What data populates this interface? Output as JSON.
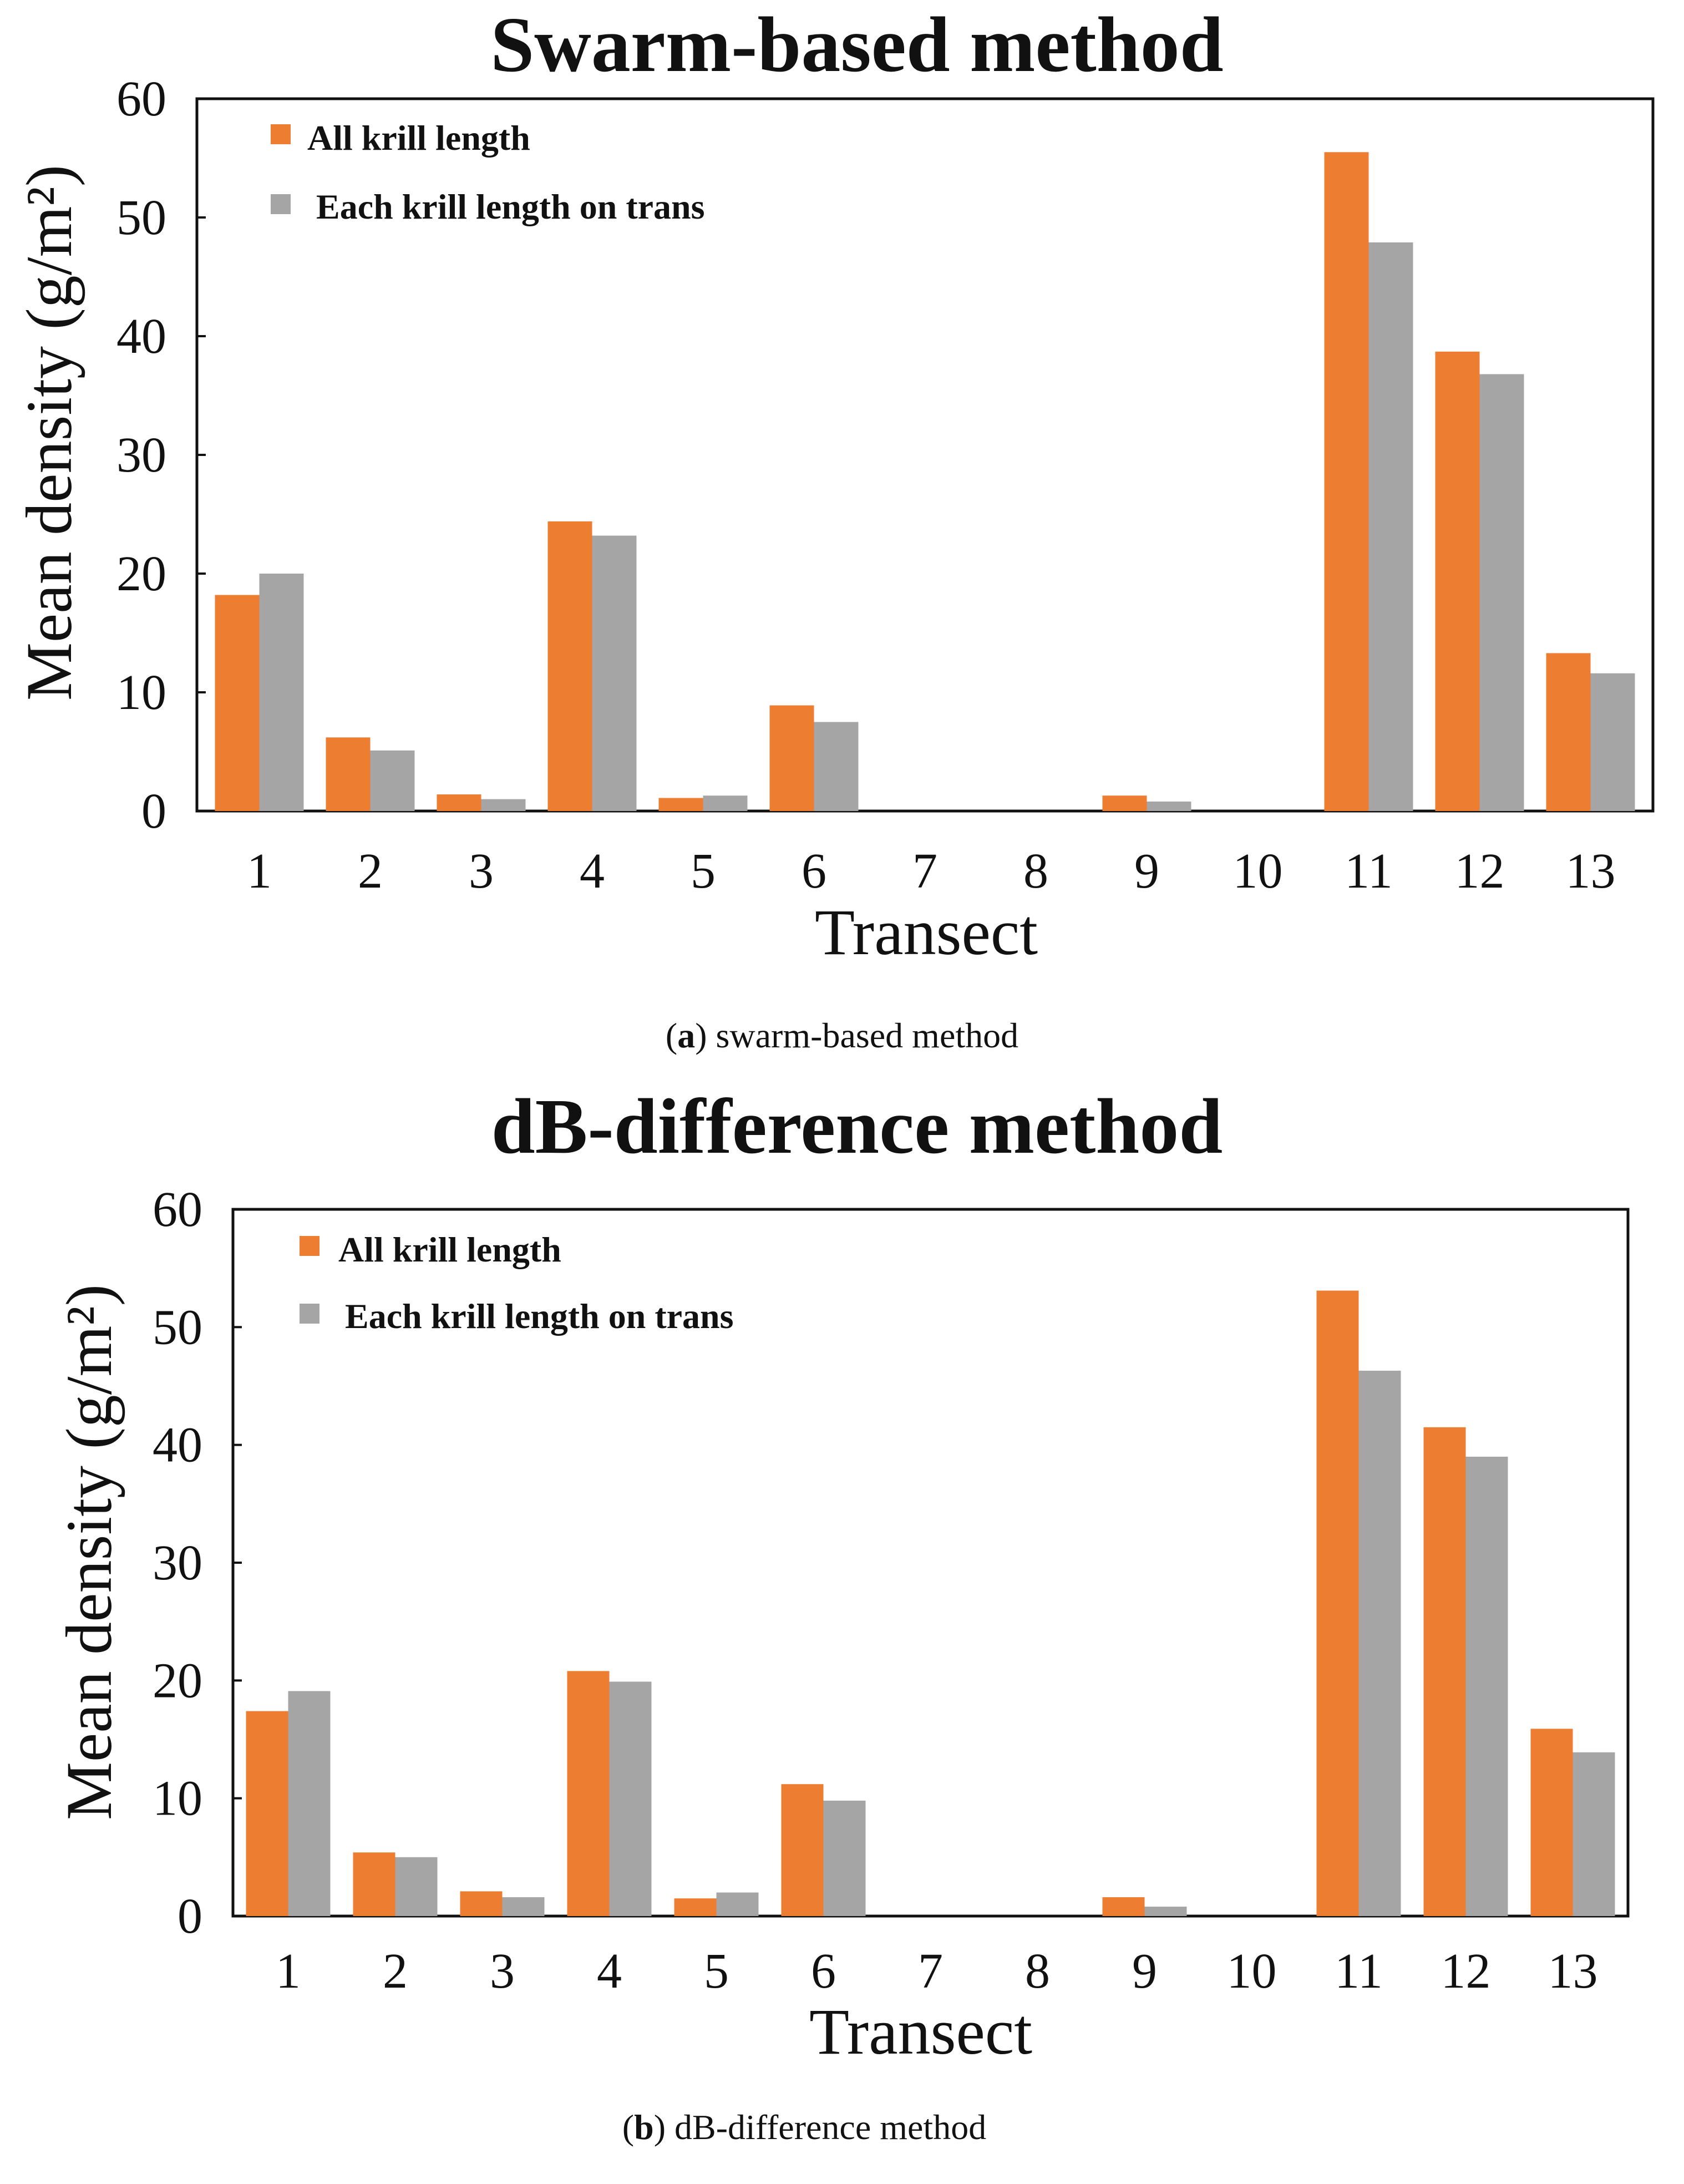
{
  "chart_data": [
    {
      "type": "bar",
      "title": "Swarm-based method",
      "xlabel": "Transect",
      "ylabel": "Mean density (g/m²)",
      "ylim": [
        0,
        60
      ],
      "yticks": [
        "0",
        "10",
        "20",
        "30",
        "40",
        "50",
        "60"
      ],
      "categories": [
        "1",
        "2",
        "3",
        "4",
        "5",
        "6",
        "7",
        "8",
        "9",
        "10",
        "11",
        "12",
        "13"
      ],
      "series": [
        {
          "name": "All krill length",
          "color": "#ED7D31",
          "values": [
            18.2,
            6.2,
            1.4,
            24.4,
            1.1,
            8.9,
            0,
            0,
            1.3,
            0,
            55.5,
            38.7,
            13.3
          ]
        },
        {
          "name": "Each krill length on trans",
          "color": "#A5A5A5",
          "values": [
            20.0,
            5.1,
            1.0,
            23.2,
            1.3,
            7.5,
            0,
            0,
            0.8,
            0,
            47.9,
            36.8,
            11.6
          ]
        }
      ],
      "legend_position": "top-left",
      "caption": {
        "letter": "a",
        "text": "swarm-based method"
      }
    },
    {
      "type": "bar",
      "title": "dB-difference method",
      "xlabel": "Transect",
      "ylabel": "Mean density (g/m²)",
      "ylim": [
        0,
        60
      ],
      "yticks": [
        "0",
        "10",
        "20",
        "30",
        "40",
        "50",
        "60"
      ],
      "categories": [
        "1",
        "2",
        "3",
        "4",
        "5",
        "6",
        "7",
        "8",
        "9",
        "10",
        "11",
        "12",
        "13"
      ],
      "series": [
        {
          "name": "All krill length",
          "color": "#ED7D31",
          "values": [
            17.4,
            5.4,
            2.1,
            20.8,
            1.5,
            11.2,
            0,
            0,
            1.6,
            0,
            53.1,
            41.5,
            15.9
          ]
        },
        {
          "name": "Each krill length on trans",
          "color": "#A5A5A5",
          "values": [
            19.1,
            5.0,
            1.6,
            19.9,
            2.0,
            9.8,
            0,
            0,
            0.8,
            0,
            46.3,
            39.0,
            13.9
          ]
        }
      ],
      "legend_position": "top-left",
      "caption": {
        "letter": "b",
        "text": "dB-difference method"
      }
    }
  ]
}
